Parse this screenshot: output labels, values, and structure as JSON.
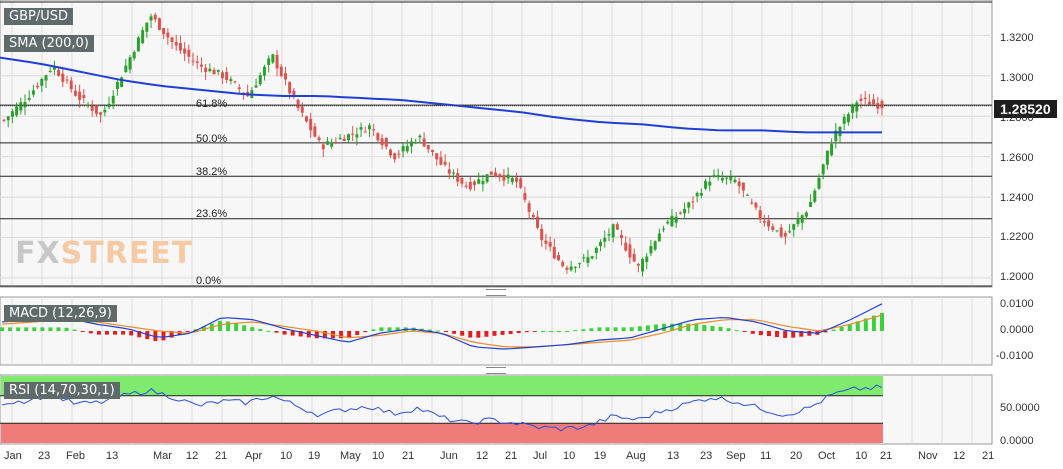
{
  "panel_labels": {
    "symbol": "GBP/USD",
    "sma": "SMA (200,0)",
    "macd": "MACD (12,26,9)",
    "rsi": "RSI (14,70,30,1)"
  },
  "logo": {
    "part1": "FX",
    "part2": "STREET"
  },
  "current_price": "1.28520",
  "price_axis": [
    "1.3200",
    "1.3000",
    "1.2800",
    "1.2600",
    "1.2400",
    "1.2200",
    "1.2000"
  ],
  "macd_axis": [
    "0.0100",
    "0.0000",
    "-0.0100"
  ],
  "rsi_axis": [
    "50.0000",
    "0.0000"
  ],
  "fibonacci": [
    {
      "label": "61.8%",
      "value": 1.2855
    },
    {
      "label": "50.0%",
      "value": 1.2668
    },
    {
      "label": "38.2%",
      "value": 1.2503
    },
    {
      "label": "23.6%",
      "value": 1.2293
    },
    {
      "label": "0.0%",
      "value": 1.196
    }
  ],
  "x_labels": [
    "Jan",
    "23",
    "Feb",
    "13",
    "Mar",
    "12",
    "21",
    "Apr",
    "10",
    "19",
    "May",
    "10",
    "21",
    "Jun",
    "12",
    "21",
    "Jul",
    "10",
    "19",
    "Aug",
    "13",
    "23",
    "Sep",
    "11",
    "20",
    "Oct",
    "10",
    "21",
    "Nov",
    "12",
    "21"
  ],
  "colors": {
    "up": "#2ca02c",
    "down": "#d9534f",
    "sma": "#1f3fd6",
    "macd": "#1f3fd6",
    "signal": "#f08a24",
    "rsi": "#2a4fd6",
    "overbought": "#7fea6e",
    "oversold": "#ef7b7b"
  },
  "chart_data": {
    "type": "line",
    "series": [
      {
        "values": [
          1.309,
          1.306,
          1.302,
          1.298,
          1.295,
          1.293,
          1.291,
          1.29,
          1.29,
          1.289,
          1.288,
          1.286,
          1.284,
          1.282,
          1.279,
          1.277,
          1.276,
          1.274,
          1.273,
          1.273,
          1.272,
          1.272,
          1.272
        ]
      },
      {
        "values": [
          1.278,
          1.29,
          1.305,
          1.29,
          1.28,
          1.305,
          1.33,
          1.315,
          1.305,
          1.3,
          1.29,
          1.31,
          1.285,
          1.265,
          1.27,
          1.275,
          1.26,
          1.27,
          1.255,
          1.245,
          1.252,
          1.248,
          1.22,
          1.205,
          1.21,
          1.225,
          1.205,
          1.225,
          1.235,
          1.25,
          1.248,
          1.23,
          1.22,
          1.235,
          1.27,
          1.288,
          1.2852
        ]
      }
    ],
    "macd": {
      "line": [
        0.004,
        0.005,
        0.006,
        0.003,
        0.001,
        -0.003,
        -0.001,
        0.006,
        0.005,
        0.001,
        -0.002,
        -0.005,
        -0.001,
        0.001,
        -0.001,
        -0.007,
        -0.008,
        -0.007,
        -0.006,
        -0.004,
        -0.003,
        0.001,
        0.005,
        0.006,
        0.004,
        0.0,
        -0.001,
        0.005,
        0.012
      ],
      "signal": [
        0.003,
        0.004,
        0.005,
        0.004,
        0.002,
        0.0,
        -0.001,
        0.003,
        0.004,
        0.002,
        0.0,
        -0.003,
        -0.002,
        0.0,
        -0.001,
        -0.005,
        -0.007,
        -0.007,
        -0.006,
        -0.005,
        -0.004,
        -0.001,
        0.003,
        0.005,
        0.005,
        0.002,
        0.0,
        0.003,
        0.007
      ]
    },
    "rsi": {
      "values": [
        60,
        63,
        72,
        58,
        60,
        70,
        78,
        68,
        55,
        62,
        60,
        70,
        56,
        42,
        50,
        55,
        44,
        52,
        38,
        30,
        35,
        30,
        24,
        22,
        26,
        40,
        35,
        48,
        58,
        68,
        62,
        52,
        42,
        52,
        72,
        80,
        82
      ],
      "overbought": 70,
      "oversold": 30
    },
    "ylim": [
      1.196,
      1.337
    ],
    "grid": true
  }
}
